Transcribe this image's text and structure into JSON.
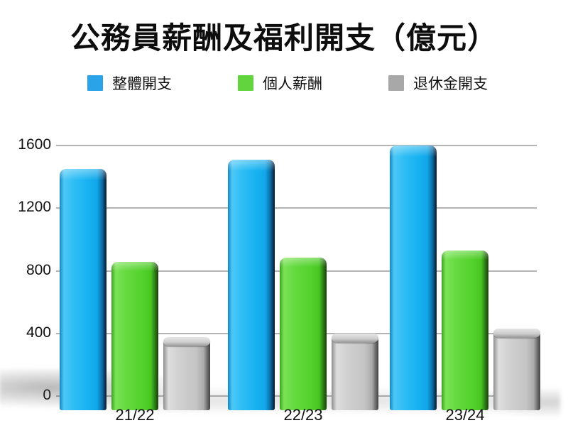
{
  "title": "公務員薪酬及福利開支（億元）",
  "legend": [
    {
      "label": "整體開支",
      "color": "#2aa3e8"
    },
    {
      "label": "個人薪酬",
      "color": "#62d43d"
    },
    {
      "label": "退休金開支",
      "color": "#a8a8a8"
    }
  ],
  "chart_data": {
    "type": "bar",
    "title": "公務員薪酬及福利開支（億元）",
    "categories": [
      "21/22",
      "22/23",
      "23/24"
    ],
    "series": [
      {
        "name": "整體開支",
        "color": "#2aa3e8",
        "values": [
          1450,
          1510,
          1600
        ]
      },
      {
        "name": "個人薪酬",
        "color": "#62d43d",
        "values": [
          855,
          885,
          930
        ]
      },
      {
        "name": "退休金開支",
        "color": "#b5b5b5",
        "values": [
          375,
          400,
          430
        ]
      }
    ],
    "xlabel": "",
    "ylabel": "",
    "ylim": [
      0,
      1600
    ],
    "yticks": [
      0,
      400,
      800,
      1200,
      1600
    ],
    "grid": true,
    "legend_position": "top",
    "style": "3d-glossy-bars"
  }
}
